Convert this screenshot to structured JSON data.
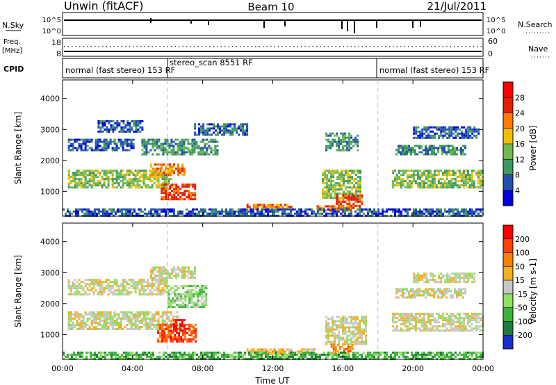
{
  "header": {
    "station": "Unwin (fitACF)",
    "beam": "Beam 10",
    "date": "21/Jul/2011"
  },
  "summary_panels": {
    "nsky": {
      "label": "N.Sky",
      "ticks_left": [
        "10^5",
        "10^0"
      ],
      "ticks_right": [
        "10^5",
        "10^0"
      ],
      "right_label": "N.Search"
    },
    "freq": {
      "label_line1": "Freq.",
      "label_line2": "[MHz]",
      "ticks_left": [
        "18",
        "8"
      ],
      "ticks_right": [
        "60",
        "0"
      ],
      "right_label": "Nave"
    },
    "cpid": {
      "label": "CPID",
      "segments": [
        {
          "text": "normal (fast stereo) 153 RF"
        },
        {
          "text": "stereo_scan 8551 RF"
        },
        {
          "text": "normal (fast stereo) 153 RF"
        }
      ]
    }
  },
  "chart_data": [
    {
      "type": "heatmap",
      "name": "power",
      "ylabel": "Slant Range [km]",
      "colorbar_label": "Power [dB]",
      "yticks": [
        "1000",
        "2000",
        "3000",
        "4000"
      ],
      "ylim": [
        200,
        4600
      ],
      "xlim_hours": [
        0,
        24
      ],
      "colorbar_ticks": [
        "4",
        "8",
        "12",
        "16",
        "20",
        "24",
        "28"
      ],
      "colors": [
        "#0000dc",
        "#2050b0",
        "#3f9860",
        "#6fba50",
        "#f0c000",
        "#ff7a00",
        "#e02000",
        "#ff0000"
      ],
      "bands": [
        {
          "t0": 0.3,
          "t1": 6.2,
          "r0": 1150,
          "r1": 1700,
          "level": 3
        },
        {
          "t0": 5.0,
          "t1": 7.0,
          "r0": 1550,
          "r1": 1900,
          "level": 5
        },
        {
          "t0": 5.6,
          "t1": 7.6,
          "r0": 750,
          "r1": 1250,
          "level": 6
        },
        {
          "t0": 0.3,
          "t1": 4.0,
          "r0": 2300,
          "r1": 2700,
          "level": 1
        },
        {
          "t0": 2.0,
          "t1": 4.5,
          "r0": 2900,
          "r1": 3300,
          "level": 1
        },
        {
          "t0": 4.5,
          "t1": 8.8,
          "r0": 2200,
          "r1": 2700,
          "level": 2
        },
        {
          "t0": 7.5,
          "t1": 10.5,
          "r0": 2800,
          "r1": 3200,
          "level": 1
        },
        {
          "t0": 15.0,
          "t1": 16.8,
          "r0": 2300,
          "r1": 2900,
          "level": 2
        },
        {
          "t0": 14.8,
          "t1": 17.0,
          "r0": 800,
          "r1": 1700,
          "level": 3
        },
        {
          "t0": 15.6,
          "t1": 17.1,
          "r0": 450,
          "r1": 900,
          "level": 6
        },
        {
          "t0": 14.5,
          "t1": 16.5,
          "r0": 350,
          "r1": 550,
          "level": 5
        },
        {
          "t0": 10.5,
          "t1": 13.0,
          "r0": 400,
          "r1": 600,
          "level": 5
        },
        {
          "t0": 18.8,
          "t1": 24.0,
          "r0": 1100,
          "r1": 1700,
          "level": 3
        },
        {
          "t0": 19.0,
          "t1": 23.0,
          "r0": 2200,
          "r1": 2500,
          "level": 2
        },
        {
          "t0": 20.0,
          "t1": 23.8,
          "r0": 2700,
          "r1": 3100,
          "level": 1
        },
        {
          "t0": 0.0,
          "t1": 24.0,
          "r0": 200,
          "r1": 450,
          "level": 1
        }
      ]
    },
    {
      "type": "heatmap",
      "name": "velocity",
      "ylabel": "Slant Range [km]",
      "colorbar_label": "Velocity [m s-1]",
      "xlabel": "Time UT",
      "yticks": [
        "1000",
        "2000",
        "3000",
        "4000"
      ],
      "xticks": [
        "00:00",
        "04:00",
        "08:00",
        "12:00",
        "16:00",
        "20:00",
        "00:00"
      ],
      "ylim": [
        200,
        4600
      ],
      "xlim_hours": [
        0,
        24
      ],
      "colorbar_ticks": [
        "200",
        "100",
        "50",
        "15",
        "-15",
        "-50",
        "-100",
        "-200"
      ],
      "colors": [
        "#1c2ad0",
        "#1e7c3c",
        "#3cb43c",
        "#8ee060",
        "#c8c8c8",
        "#f0b020",
        "#ff8000",
        "#ff4000",
        "#ff0000"
      ],
      "bands": [
        {
          "t0": 0.3,
          "t1": 6.5,
          "r0": 1150,
          "r1": 1750,
          "level": 4
        },
        {
          "t0": 5.4,
          "t1": 7.6,
          "r0": 750,
          "r1": 1350,
          "level": 7
        },
        {
          "t0": 6.3,
          "t1": 7.0,
          "r0": 1100,
          "r1": 1500,
          "level": 8
        },
        {
          "t0": 0.3,
          "t1": 6.0,
          "r0": 2300,
          "r1": 2800,
          "level": 4
        },
        {
          "t0": 6.0,
          "t1": 8.2,
          "r0": 1900,
          "r1": 2600,
          "level": 3
        },
        {
          "t0": 5.0,
          "t1": 7.6,
          "r0": 2800,
          "r1": 3200,
          "level": 4
        },
        {
          "t0": 15.0,
          "t1": 17.3,
          "r0": 700,
          "r1": 1600,
          "level": 4
        },
        {
          "t0": 15.3,
          "t1": 16.5,
          "r0": 400,
          "r1": 700,
          "level": 6
        },
        {
          "t0": 10.5,
          "t1": 14.5,
          "r0": 350,
          "r1": 550,
          "level": 5
        },
        {
          "t0": 18.8,
          "t1": 24.0,
          "r0": 1150,
          "r1": 1700,
          "level": 4
        },
        {
          "t0": 19.0,
          "t1": 23.0,
          "r0": 2200,
          "r1": 2500,
          "level": 4
        },
        {
          "t0": 20.0,
          "t1": 23.5,
          "r0": 2700,
          "r1": 3000,
          "level": 4
        },
        {
          "t0": 0.0,
          "t1": 24.0,
          "r0": 200,
          "r1": 450,
          "level": 2
        }
      ]
    }
  ]
}
